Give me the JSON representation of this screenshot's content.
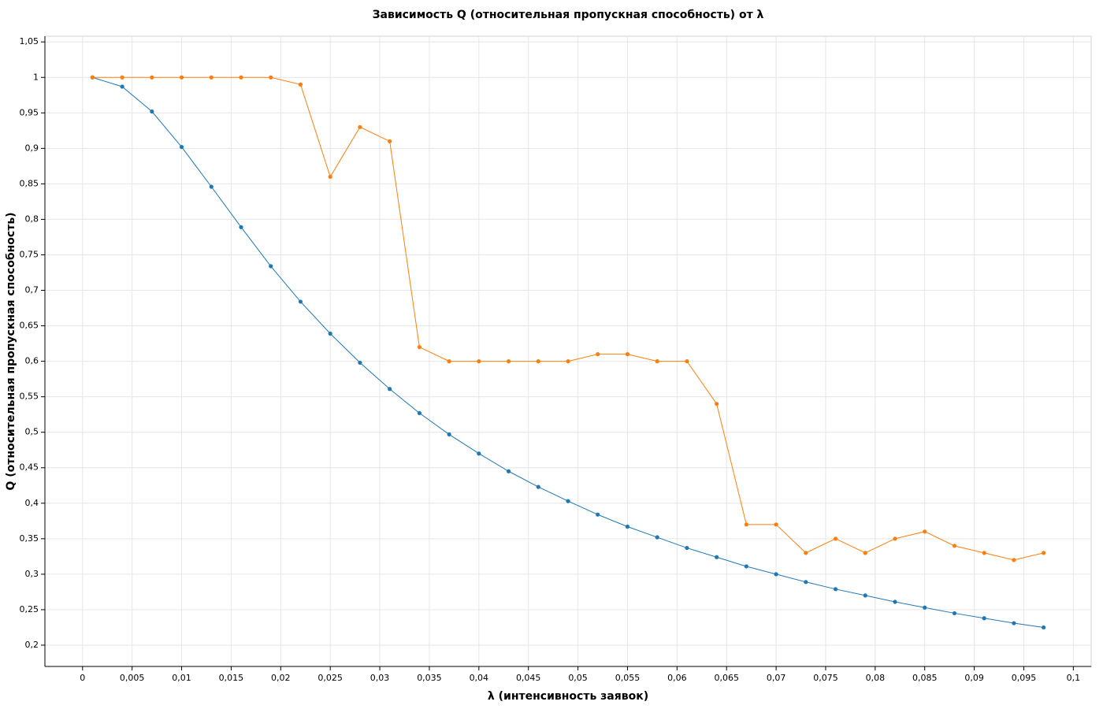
{
  "chart_data": {
    "type": "line",
    "title": "Зависимость Q (относительная пропускная способность) от λ",
    "x_label": "λ (интенсивность заявок)",
    "y_label": "Q (относительная пропускная способность)",
    "x": [
      0.001,
      0.004,
      0.007,
      0.01,
      0.013,
      0.016,
      0.019,
      0.022,
      0.025,
      0.028,
      0.031,
      0.034,
      0.037,
      0.04,
      0.043,
      0.046,
      0.049,
      0.052,
      0.055,
      0.058,
      0.061,
      0.064,
      0.067,
      0.07,
      0.073,
      0.076,
      0.079,
      0.082,
      0.085,
      0.088,
      0.091,
      0.094,
      0.097
    ],
    "series": [
      {
        "color": "#1f77b4",
        "values": [
          1,
          0.987,
          0.952,
          0.902,
          0.846,
          0.789,
          0.734,
          0.684,
          0.639,
          0.598,
          0.561,
          0.527,
          0.497,
          0.47,
          0.445,
          0.423,
          0.403,
          0.384,
          0.367,
          0.352,
          0.337,
          0.324,
          0.311,
          0.3,
          0.289,
          0.279,
          0.27,
          0.261,
          0.253,
          0.245,
          0.238,
          0.231,
          0.225
        ]
      },
      {
        "color": "#ff7f0e",
        "values": [
          1,
          1,
          1,
          1,
          1,
          1,
          1,
          0.99,
          0.86,
          0.93,
          0.91,
          0.62,
          0.6,
          0.6,
          0.6,
          0.6,
          0.6,
          0.61,
          0.61,
          0.6,
          0.6,
          0.54,
          0.37,
          0.37,
          0.33,
          0.35,
          0.33,
          0.35,
          0.36,
          0.34,
          0.33,
          0.32,
          0.33
        ]
      }
    ],
    "xlim": [
      -0.0038,
      0.1018
    ],
    "ylim": [
      0.17,
      1.058
    ],
    "xticks": [
      0,
      {
        "value": 0.005,
        "label": "0,005"
      },
      {
        "value": 0.01,
        "label": "0,01"
      },
      {
        "value": 0.015,
        "label": "0,015"
      },
      {
        "value": 0.02,
        "label": "0,02"
      },
      {
        "value": 0.025,
        "label": "0,025"
      },
      {
        "value": 0.03,
        "label": "0,03"
      },
      {
        "value": 0.035,
        "label": "0,035"
      },
      {
        "value": 0.04,
        "label": "0,04"
      },
      {
        "value": 0.045,
        "label": "0,045"
      },
      {
        "value": 0.05,
        "label": "0,05"
      },
      {
        "value": 0.055,
        "label": "0,055"
      },
      {
        "value": 0.06,
        "label": "0,06"
      },
      {
        "value": 0.065,
        "label": "0,065"
      },
      {
        "value": 0.07,
        "label": "0,07"
      },
      {
        "value": 0.075,
        "label": "0,075"
      },
      {
        "value": 0.08,
        "label": "0,08"
      },
      {
        "value": 0.085,
        "label": "0,085"
      },
      {
        "value": 0.09,
        "label": "0,09"
      },
      {
        "value": 0.095,
        "label": "0,095"
      },
      {
        "value": 0.1,
        "label": "0,1"
      }
    ],
    "yticks": [
      {
        "value": 0.2,
        "label": "0,2"
      },
      {
        "value": 0.25,
        "label": "0,25"
      },
      {
        "value": 0.3,
        "label": "0,3"
      },
      {
        "value": 0.35,
        "label": "0,35"
      },
      {
        "value": 0.4,
        "label": "0,4"
      },
      {
        "value": 0.45,
        "label": "0,45"
      },
      {
        "value": 0.5,
        "label": "0,5"
      },
      {
        "value": 0.55,
        "label": "0,55"
      },
      {
        "value": 0.6,
        "label": "0,6"
      },
      {
        "value": 0.65,
        "label": "0,65"
      },
      {
        "value": 0.7,
        "label": "0,7"
      },
      {
        "value": 0.75,
        "label": "0,75"
      },
      {
        "value": 0.8,
        "label": "0,8"
      },
      {
        "value": 0.85,
        "label": "0,85"
      },
      {
        "value": 0.9,
        "label": "0,9"
      },
      {
        "value": 0.95,
        "label": "0,95"
      },
      1,
      {
        "value": 1.05,
        "label": "1,05"
      }
    ],
    "grid": true
  }
}
